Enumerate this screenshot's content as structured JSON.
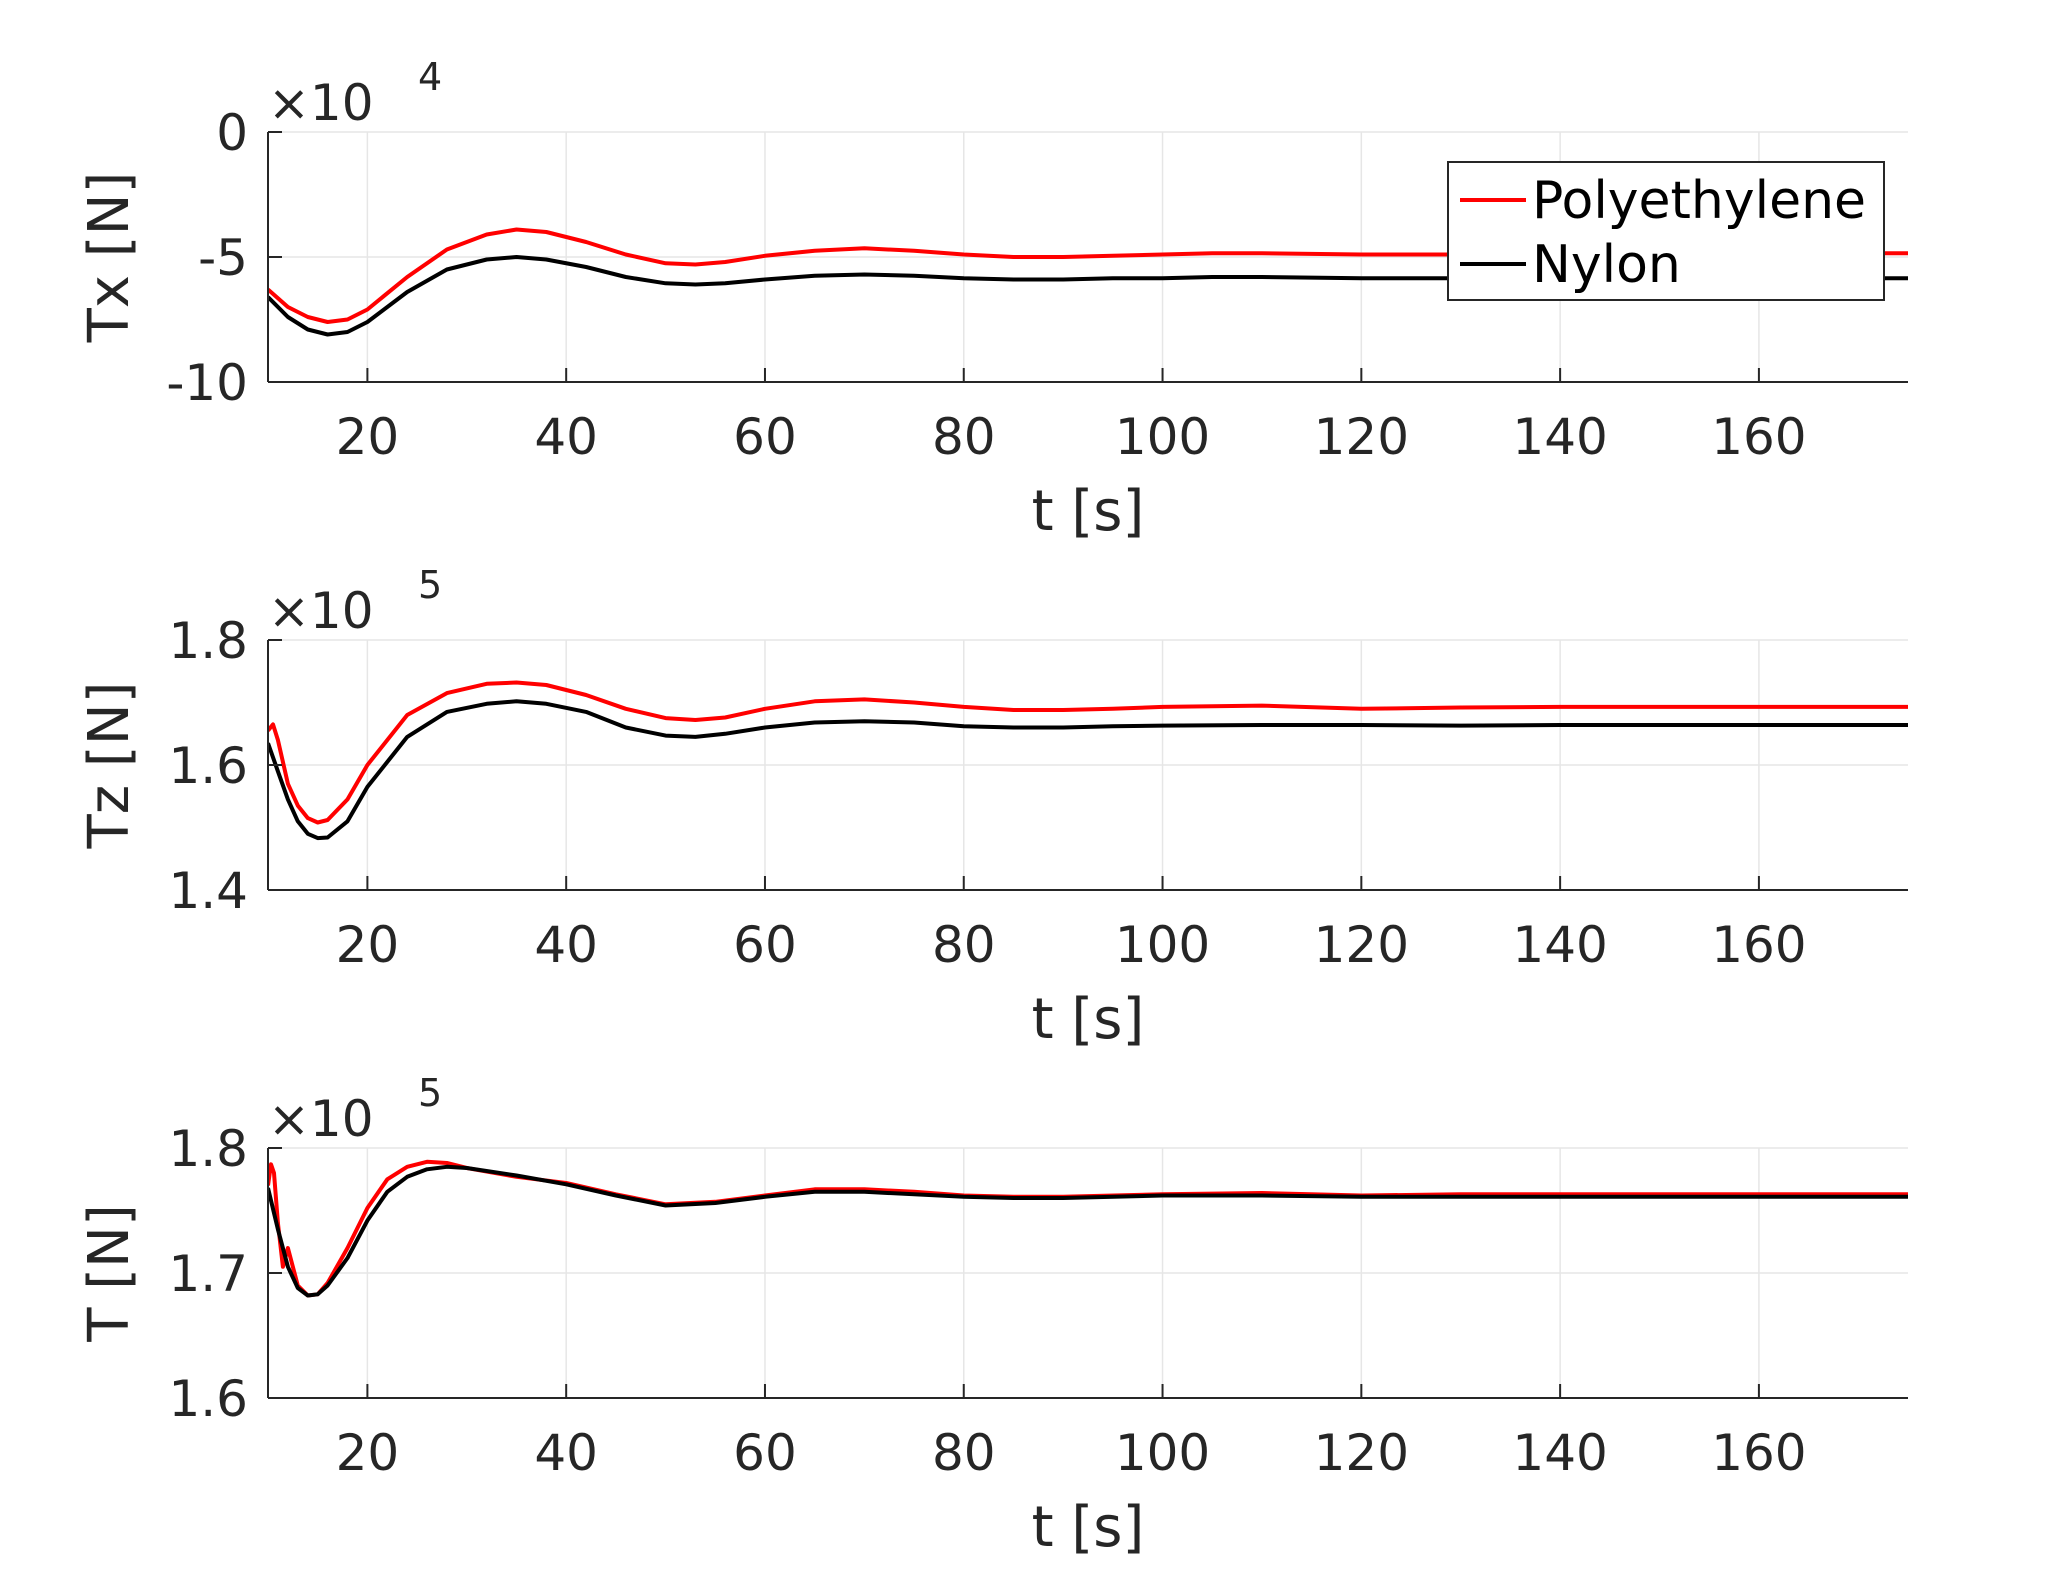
{
  "chart_data": [
    {
      "type": "line",
      "xlabel": "t [s]",
      "ylabel": "Tx [N]",
      "exponent": "×10",
      "exponent_power": "4",
      "xlim": [
        10,
        175
      ],
      "ylim": [
        -10,
        0
      ],
      "xticks": [
        20,
        40,
        60,
        80,
        100,
        120,
        140,
        160
      ],
      "xtick_labels": [
        "20",
        "40",
        "60",
        "80",
        "100",
        "120",
        "140",
        "160"
      ],
      "yticks": [
        -10,
        -5,
        0
      ],
      "ytick_labels": [
        "-10",
        "-5",
        "0"
      ],
      "grid": true,
      "legend": {
        "position": "top-right",
        "entries": [
          "Polyethylene",
          "Nylon"
        ]
      },
      "series": [
        {
          "name": "Polyethylene",
          "color": "#ff0000",
          "x": [
            10,
            12,
            14,
            16,
            18,
            20,
            24,
            28,
            32,
            35,
            38,
            42,
            46,
            50,
            53,
            56,
            60,
            65,
            70,
            75,
            80,
            85,
            90,
            95,
            100,
            105,
            110,
            120,
            130,
            140,
            150,
            160,
            175
          ],
          "y": [
            -6.3,
            -7.0,
            -7.4,
            -7.6,
            -7.5,
            -7.1,
            -5.8,
            -4.7,
            -4.1,
            -3.9,
            -4.0,
            -4.4,
            -4.9,
            -5.25,
            -5.3,
            -5.2,
            -4.95,
            -4.75,
            -4.65,
            -4.75,
            -4.9,
            -5.0,
            -5.0,
            -4.95,
            -4.9,
            -4.85,
            -4.85,
            -4.9,
            -4.9,
            -4.85,
            -4.85,
            -4.85,
            -4.85
          ]
        },
        {
          "name": "Nylon",
          "color": "#000000",
          "x": [
            10,
            12,
            14,
            16,
            18,
            20,
            24,
            28,
            32,
            35,
            38,
            42,
            46,
            50,
            53,
            56,
            60,
            65,
            70,
            75,
            80,
            85,
            90,
            95,
            100,
            105,
            110,
            120,
            130,
            140,
            150,
            160,
            175
          ],
          "y": [
            -6.6,
            -7.4,
            -7.9,
            -8.1,
            -8.0,
            -7.6,
            -6.4,
            -5.5,
            -5.1,
            -5.0,
            -5.1,
            -5.4,
            -5.8,
            -6.05,
            -6.1,
            -6.05,
            -5.9,
            -5.75,
            -5.7,
            -5.75,
            -5.85,
            -5.9,
            -5.9,
            -5.85,
            -5.85,
            -5.8,
            -5.8,
            -5.85,
            -5.85,
            -5.85,
            -5.85,
            -5.85,
            -5.85
          ]
        }
      ]
    },
    {
      "type": "line",
      "xlabel": "t [s]",
      "ylabel": "Tz [N]",
      "exponent": "×10",
      "exponent_power": "5",
      "xlim": [
        10,
        175
      ],
      "ylim": [
        1.4,
        1.8
      ],
      "xticks": [
        20,
        40,
        60,
        80,
        100,
        120,
        140,
        160
      ],
      "xtick_labels": [
        "20",
        "40",
        "60",
        "80",
        "100",
        "120",
        "140",
        "160"
      ],
      "yticks": [
        1.4,
        1.6,
        1.8
      ],
      "ytick_labels": [
        "1.4",
        "1.6",
        "1.8"
      ],
      "grid": true,
      "series": [
        {
          "name": "Polyethylene",
          "color": "#ff0000",
          "x": [
            10,
            10.5,
            11,
            12,
            13,
            14,
            15,
            16,
            18,
            20,
            24,
            28,
            32,
            35,
            38,
            42,
            46,
            50,
            53,
            56,
            60,
            65,
            70,
            75,
            80,
            85,
            90,
            95,
            100,
            110,
            120,
            130,
            140,
            150,
            160,
            175
          ],
          "y": [
            1.655,
            1.665,
            1.64,
            1.57,
            1.535,
            1.515,
            1.508,
            1.512,
            1.545,
            1.6,
            1.68,
            1.715,
            1.73,
            1.732,
            1.728,
            1.712,
            1.69,
            1.675,
            1.672,
            1.676,
            1.69,
            1.702,
            1.705,
            1.7,
            1.693,
            1.688,
            1.688,
            1.69,
            1.693,
            1.695,
            1.69,
            1.692,
            1.693,
            1.693,
            1.693,
            1.693
          ]
        },
        {
          "name": "Nylon",
          "color": "#000000",
          "x": [
            10,
            11,
            12,
            13,
            14,
            15,
            16,
            18,
            20,
            24,
            28,
            32,
            35,
            38,
            42,
            46,
            50,
            53,
            56,
            60,
            65,
            70,
            75,
            80,
            85,
            90,
            95,
            100,
            110,
            120,
            130,
            140,
            150,
            160,
            175
          ],
          "y": [
            1.635,
            1.59,
            1.545,
            1.51,
            1.49,
            1.483,
            1.484,
            1.51,
            1.565,
            1.645,
            1.685,
            1.698,
            1.702,
            1.698,
            1.685,
            1.66,
            1.647,
            1.645,
            1.65,
            1.66,
            1.668,
            1.67,
            1.668,
            1.662,
            1.66,
            1.66,
            1.662,
            1.663,
            1.664,
            1.664,
            1.663,
            1.664,
            1.664,
            1.664,
            1.664
          ]
        }
      ]
    },
    {
      "type": "line",
      "xlabel": "t [s]",
      "ylabel": "T [N]",
      "exponent": "×10",
      "exponent_power": "5",
      "xlim": [
        10,
        175
      ],
      "ylim": [
        1.6,
        1.8
      ],
      "xticks": [
        20,
        40,
        60,
        80,
        100,
        120,
        140,
        160
      ],
      "xtick_labels": [
        "20",
        "40",
        "60",
        "80",
        "100",
        "120",
        "140",
        "160"
      ],
      "yticks": [
        1.6,
        1.7,
        1.8
      ],
      "ytick_labels": [
        "1.6",
        "1.7",
        "1.8"
      ],
      "grid": true,
      "series": [
        {
          "name": "Polyethylene",
          "color": "#ff0000",
          "x": [
            10,
            10.3,
            10.6,
            11,
            11.5,
            12,
            13,
            14,
            15,
            16,
            18,
            20,
            22,
            24,
            26,
            28,
            30,
            35,
            40,
            45,
            50,
            55,
            60,
            65,
            70,
            75,
            80,
            85,
            90,
            100,
            110,
            120,
            130,
            140,
            150,
            160,
            175
          ],
          "y": [
            1.77,
            1.787,
            1.78,
            1.74,
            1.705,
            1.72,
            1.69,
            1.682,
            1.683,
            1.692,
            1.72,
            1.752,
            1.775,
            1.785,
            1.789,
            1.788,
            1.784,
            1.777,
            1.772,
            1.763,
            1.755,
            1.757,
            1.762,
            1.767,
            1.767,
            1.765,
            1.762,
            1.761,
            1.761,
            1.763,
            1.764,
            1.762,
            1.763,
            1.763,
            1.763,
            1.763,
            1.763
          ]
        },
        {
          "name": "Nylon",
          "color": "#000000",
          "x": [
            10,
            11,
            12,
            13,
            14,
            15,
            16,
            18,
            20,
            22,
            24,
            26,
            28,
            30,
            35,
            40,
            45,
            50,
            55,
            60,
            65,
            70,
            75,
            80,
            85,
            90,
            100,
            110,
            120,
            130,
            140,
            150,
            160,
            175
          ],
          "y": [
            1.768,
            1.735,
            1.705,
            1.688,
            1.682,
            1.683,
            1.69,
            1.712,
            1.742,
            1.765,
            1.777,
            1.783,
            1.785,
            1.784,
            1.778,
            1.771,
            1.762,
            1.754,
            1.756,
            1.761,
            1.765,
            1.765,
            1.763,
            1.761,
            1.76,
            1.76,
            1.762,
            1.762,
            1.761,
            1.761,
            1.761,
            1.761,
            1.761,
            1.761
          ]
        }
      ]
    }
  ]
}
